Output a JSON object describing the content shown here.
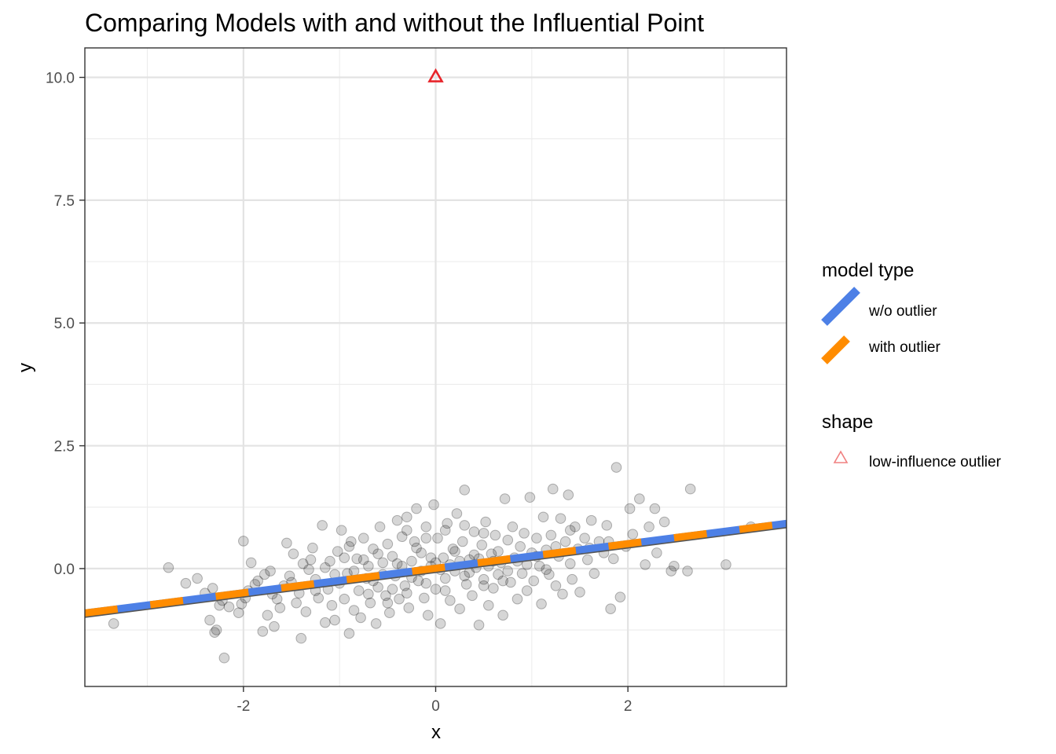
{
  "chart_data": {
    "type": "scatter",
    "title": "Comparing Models with and without the Influential Point",
    "xlabel": "x",
    "ylabel": "y",
    "xlim": [
      -3.65,
      3.65
    ],
    "ylim": [
      -2.4,
      10.6
    ],
    "x_ticks": [
      -2,
      0,
      2
    ],
    "x_tick_labels": [
      "-2",
      "0",
      "2"
    ],
    "y_ticks": [
      0,
      2.5,
      5,
      7.5,
      10
    ],
    "y_tick_labels": [
      "0.0",
      "2.5",
      "5.0",
      "7.5",
      "10.0"
    ],
    "grid": true,
    "scatter_points": [
      [
        -3.35,
        -1.12
      ],
      [
        -2.78,
        0.02
      ],
      [
        -2.6,
        -0.3
      ],
      [
        -2.48,
        -0.2
      ],
      [
        -2.4,
        -0.5
      ],
      [
        -2.35,
        -1.05
      ],
      [
        -2.32,
        -0.4
      ],
      [
        -2.3,
        -1.3
      ],
      [
        -2.28,
        -1.25
      ],
      [
        -2.25,
        -0.75
      ],
      [
        -2.22,
        -0.65
      ],
      [
        -2.2,
        -1.82
      ],
      [
        -2.15,
        -0.78
      ],
      [
        -2.05,
        -0.9
      ],
      [
        -2.02,
        -0.72
      ],
      [
        -2.0,
        0.56
      ],
      [
        -1.98,
        -0.6
      ],
      [
        -1.95,
        -0.45
      ],
      [
        -1.92,
        0.12
      ],
      [
        -1.88,
        -0.32
      ],
      [
        -1.85,
        -0.25
      ],
      [
        -1.8,
        -1.28
      ],
      [
        -1.78,
        -0.12
      ],
      [
        -1.75,
        -0.95
      ],
      [
        -1.72,
        -0.05
      ],
      [
        -1.68,
        -1.18
      ],
      [
        -1.65,
        -0.62
      ],
      [
        -1.62,
        -0.8
      ],
      [
        -1.58,
        -0.35
      ],
      [
        -1.55,
        0.52
      ],
      [
        -1.52,
        -0.15
      ],
      [
        -1.48,
        0.3
      ],
      [
        -1.45,
        -0.7
      ],
      [
        -1.42,
        -0.5
      ],
      [
        -1.4,
        -1.42
      ],
      [
        -1.38,
        0.1
      ],
      [
        -1.35,
        -0.88
      ],
      [
        -1.32,
        -0.02
      ],
      [
        -1.28,
        0.42
      ],
      [
        -1.25,
        -0.22
      ],
      [
        -1.22,
        -0.6
      ],
      [
        -1.18,
        0.88
      ],
      [
        -1.15,
        -1.1
      ],
      [
        -1.12,
        -0.42
      ],
      [
        -1.1,
        0.15
      ],
      [
        -1.08,
        -0.75
      ],
      [
        -1.05,
        -1.05
      ],
      [
        -1.02,
        0.35
      ],
      [
        -1.0,
        -0.3
      ],
      [
        -0.98,
        0.78
      ],
      [
        -0.95,
        -0.62
      ],
      [
        -0.92,
        -0.1
      ],
      [
        -0.9,
        -1.32
      ],
      [
        -0.88,
        0.55
      ],
      [
        -0.85,
        -0.85
      ],
      [
        -0.82,
        0.2
      ],
      [
        -0.8,
        -0.45
      ],
      [
        -0.78,
        -1.0
      ],
      [
        -0.75,
        0.62
      ],
      [
        -0.72,
        -0.2
      ],
      [
        -0.7,
        0.05
      ],
      [
        -0.68,
        -0.7
      ],
      [
        -0.65,
        0.4
      ],
      [
        -0.62,
        -1.12
      ],
      [
        -0.6,
        -0.38
      ],
      [
        -0.58,
        0.85
      ],
      [
        -0.55,
        0.12
      ],
      [
        -0.52,
        -0.55
      ],
      [
        -0.5,
        0.5
      ],
      [
        -0.48,
        -0.9
      ],
      [
        -0.45,
        0.25
      ],
      [
        -0.42,
        -0.15
      ],
      [
        -0.4,
        0.98
      ],
      [
        -0.38,
        -0.62
      ],
      [
        -0.35,
        0.65
      ],
      [
        -0.32,
        -0.35
      ],
      [
        -0.3,
        1.05
      ],
      [
        -0.28,
        -0.8
      ],
      [
        -0.25,
        0.15
      ],
      [
        -0.22,
        0.55
      ],
      [
        -0.2,
        1.22
      ],
      [
        -0.18,
        -0.25
      ],
      [
        -0.15,
        0.32
      ],
      [
        -0.12,
        -0.6
      ],
      [
        -0.1,
        0.85
      ],
      [
        -0.08,
        -0.95
      ],
      [
        -0.05,
        0.05
      ],
      [
        -0.02,
        1.3
      ],
      [
        0.0,
        -0.42
      ],
      [
        0.02,
        0.62
      ],
      [
        0.05,
        -1.12
      ],
      [
        0.08,
        0.22
      ],
      [
        0.1,
        -0.2
      ],
      [
        0.12,
        0.92
      ],
      [
        0.15,
        -0.65
      ],
      [
        0.18,
        0.4
      ],
      [
        0.2,
        -0.05
      ],
      [
        0.22,
        1.12
      ],
      [
        0.25,
        -0.82
      ],
      [
        0.28,
        0.55
      ],
      [
        0.3,
        1.6
      ],
      [
        0.32,
        -0.32
      ],
      [
        0.35,
        0.18
      ],
      [
        0.38,
        -0.55
      ],
      [
        0.4,
        0.75
      ],
      [
        0.42,
        0.02
      ],
      [
        0.45,
        -1.15
      ],
      [
        0.48,
        0.48
      ],
      [
        0.5,
        -0.22
      ],
      [
        0.52,
        0.95
      ],
      [
        0.55,
        -0.75
      ],
      [
        0.58,
        0.3
      ],
      [
        0.6,
        -0.4
      ],
      [
        0.62,
        0.68
      ],
      [
        0.65,
        -0.12
      ],
      [
        0.68,
        0.12
      ],
      [
        0.7,
        -0.95
      ],
      [
        0.72,
        1.42
      ],
      [
        0.75,
        0.58
      ],
      [
        0.78,
        -0.28
      ],
      [
        0.8,
        0.85
      ],
      [
        0.82,
        0.22
      ],
      [
        0.85,
        -0.62
      ],
      [
        0.88,
        0.45
      ],
      [
        0.9,
        -0.1
      ],
      [
        0.92,
        0.72
      ],
      [
        0.95,
        -0.45
      ],
      [
        0.98,
        1.45
      ],
      [
        1.0,
        0.32
      ],
      [
        1.02,
        -0.25
      ],
      [
        1.05,
        0.62
      ],
      [
        1.08,
        0.05
      ],
      [
        1.1,
        -0.72
      ],
      [
        1.12,
        1.05
      ],
      [
        1.15,
        0.38
      ],
      [
        1.18,
        -0.12
      ],
      [
        1.2,
        0.68
      ],
      [
        1.22,
        1.62
      ],
      [
        1.25,
        -0.35
      ],
      [
        1.28,
        0.25
      ],
      [
        1.3,
        1.02
      ],
      [
        1.32,
        -0.52
      ],
      [
        1.35,
        0.55
      ],
      [
        1.38,
        1.5
      ],
      [
        1.4,
        0.1
      ],
      [
        1.42,
        -0.22
      ],
      [
        1.45,
        0.85
      ],
      [
        1.48,
        0.4
      ],
      [
        1.5,
        -0.48
      ],
      [
        1.55,
        0.62
      ],
      [
        1.58,
        0.18
      ],
      [
        1.62,
        0.98
      ],
      [
        1.65,
        -0.1
      ],
      [
        1.7,
        0.55
      ],
      [
        1.75,
        0.32
      ],
      [
        1.78,
        0.88
      ],
      [
        1.82,
        -0.82
      ],
      [
        1.85,
        0.2
      ],
      [
        1.88,
        2.06
      ],
      [
        1.92,
        -0.58
      ],
      [
        1.98,
        0.45
      ],
      [
        2.02,
        1.22
      ],
      [
        2.05,
        0.7
      ],
      [
        2.12,
        1.42
      ],
      [
        2.18,
        0.08
      ],
      [
        2.22,
        0.85
      ],
      [
        2.28,
        1.22
      ],
      [
        2.3,
        0.32
      ],
      [
        2.38,
        0.95
      ],
      [
        2.45,
        -0.05
      ],
      [
        2.48,
        0.05
      ],
      [
        2.62,
        -0.05
      ],
      [
        2.65,
        1.62
      ],
      [
        3.02,
        0.08
      ],
      [
        3.28,
        0.85
      ],
      [
        -0.55,
        -0.12
      ],
      [
        -0.45,
        -0.42
      ],
      [
        -0.35,
        0.05
      ],
      [
        -0.25,
        -0.18
      ],
      [
        -0.15,
        -0.05
      ],
      [
        -0.05,
        0.22
      ],
      [
        0.05,
        -0.02
      ],
      [
        0.15,
        0.08
      ],
      [
        0.25,
        0.15
      ],
      [
        0.35,
        -0.08
      ],
      [
        0.45,
        0.2
      ],
      [
        0.55,
        0.05
      ],
      [
        0.65,
        0.35
      ],
      [
        -0.65,
        -0.25
      ],
      [
        -0.75,
        0.18
      ],
      [
        -0.85,
        -0.05
      ],
      [
        -0.95,
        0.22
      ],
      [
        -1.05,
        -0.12
      ],
      [
        -1.15,
        0.02
      ],
      [
        -1.25,
        -0.45
      ],
      [
        0.75,
        -0.05
      ],
      [
        0.85,
        0.15
      ],
      [
        0.95,
        0.08
      ],
      [
        1.05,
        0.25
      ],
      [
        1.15,
        -0.02
      ],
      [
        1.25,
        0.45
      ],
      [
        -0.6,
        0.3
      ],
      [
        -0.4,
        0.1
      ],
      [
        -0.2,
        0.42
      ],
      [
        0.0,
        0.12
      ],
      [
        0.2,
        0.35
      ],
      [
        0.4,
        0.28
      ],
      [
        0.6,
        0.15
      ],
      [
        -0.3,
        -0.5
      ],
      [
        -0.1,
        -0.3
      ],
      [
        0.1,
        -0.45
      ],
      [
        0.3,
        -0.15
      ],
      [
        0.5,
        -0.35
      ],
      [
        0.7,
        -0.25
      ],
      [
        -0.9,
        0.45
      ],
      [
        -0.7,
        -0.52
      ],
      [
        -0.5,
        -0.7
      ],
      [
        -0.3,
        0.78
      ],
      [
        -0.1,
        0.62
      ],
      [
        0.1,
        0.78
      ],
      [
        0.3,
        0.88
      ],
      [
        0.5,
        0.72
      ],
      [
        -1.3,
        0.18
      ],
      [
        -1.5,
        -0.28
      ],
      [
        -1.7,
        -0.52
      ],
      [
        1.4,
        0.78
      ],
      [
        1.6,
        0.42
      ],
      [
        1.8,
        0.55
      ]
    ],
    "outlier": {
      "label": "low-influence outlier",
      "x": 0.0,
      "y": 10.0,
      "color": "#e8252b"
    },
    "series": [
      {
        "name": "w/o outlier",
        "type": "line",
        "intercept": 0.0,
        "slope": 0.25,
        "color": "#4d80e6",
        "style": "solid"
      },
      {
        "name": "with outlier",
        "type": "line",
        "intercept": 0.0,
        "slope": 0.25,
        "color": "#ff8c00",
        "style": "dashed"
      }
    ],
    "legend": {
      "placement": "right",
      "groups": [
        {
          "title": "model type",
          "items": [
            {
              "label": "w/o outlier",
              "color": "#4d80e6"
            },
            {
              "label": "with outlier",
              "color": "#ff8c00"
            }
          ]
        },
        {
          "title": "shape",
          "items": [
            {
              "label": "low-influence outlier",
              "color": "#f08080"
            }
          ]
        }
      ]
    }
  }
}
